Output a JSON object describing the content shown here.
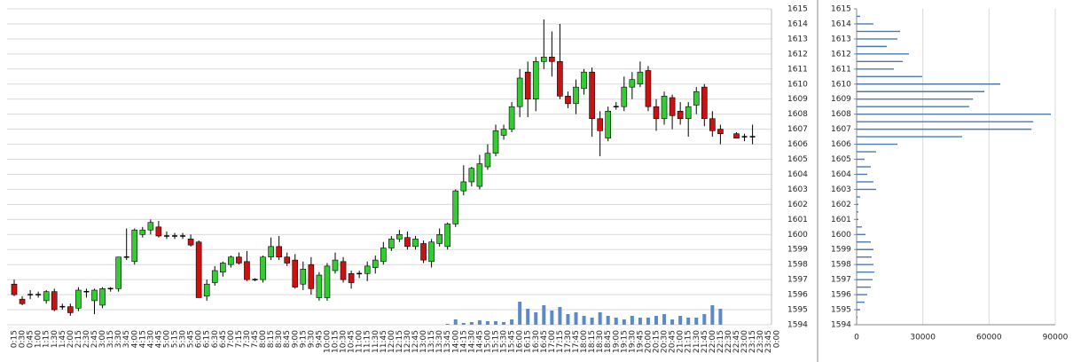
{
  "chart_data": [
    {
      "type": "candlestick",
      "categories": [
        "0:15",
        "0:30",
        "0:45",
        "1:00",
        "1:15",
        "1:30",
        "1:45",
        "2:00",
        "2:15",
        "2:30",
        "2:45",
        "3:00",
        "3:15",
        "3:30",
        "3:45",
        "4:00",
        "4:15",
        "4:30",
        "4:45",
        "5:00",
        "5:15",
        "5:30",
        "5:45",
        "6:00",
        "6:15",
        "6:30",
        "6:45",
        "7:00",
        "7:15",
        "7:30",
        "7:45",
        "8:00",
        "8:15",
        "8:30",
        "8:45",
        "9:00",
        "9:15",
        "9:30",
        "9:45",
        "10:00",
        "10:15",
        "10:30",
        "10:45",
        "11:00",
        "11:15",
        "11:30",
        "11:45",
        "12:00",
        "12:15",
        "12:30",
        "12:45",
        "13:00",
        "13:15",
        "13:30",
        "13:45",
        "14:00",
        "14:15",
        "14:30",
        "14:45",
        "15:00",
        "15:15",
        "15:30",
        "15:45",
        "16:00",
        "16:15",
        "16:30",
        "16:45",
        "17:00",
        "17:15",
        "17:30",
        "17:45",
        "18:00",
        "18:15",
        "18:30",
        "18:45",
        "19:00",
        "19:15",
        "19:30",
        "19:45",
        "20:00",
        "20:15",
        "20:30",
        "20:45",
        "21:00",
        "21:15",
        "21:30",
        "21:45",
        "22:00",
        "22:15",
        "22:30",
        "22:45",
        "23:00",
        "23:15",
        "23:30",
        "23:45",
        "0:00"
      ],
      "open": [
        1596.7,
        1595.7,
        1596.0,
        1596.0,
        1595.6,
        1596.2,
        1595.2,
        1595.2,
        1595.1,
        1596.2,
        1595.6,
        1595.3,
        1596.4,
        1596.4,
        1598.5,
        1598.2,
        1600.0,
        1600.3,
        1600.5,
        1599.9,
        1599.9,
        1599.9,
        1599.7,
        1599.5,
        1595.9,
        1596.8,
        1597.5,
        1598.0,
        1598.5,
        1598.2,
        1597.0,
        1597.0,
        1598.5,
        1599.2,
        1598.5,
        1598.3,
        1596.7,
        1598.0,
        1595.8,
        1595.8,
        1597.6,
        1598.2,
        1597.4,
        1597.4,
        1597.4,
        1597.8,
        1598.2,
        1599.1,
        1599.7,
        1599.8,
        1599.2,
        1599.4,
        1598.2,
        1599.4,
        1599.2,
        1600.7,
        1602.9,
        1603.5,
        1603.2,
        1604.5,
        1605.4,
        1606.6,
        1607.0,
        1608.5,
        1610.8,
        1609.0,
        1611.5,
        1611.8,
        1611.5,
        1609.2,
        1608.7,
        1609.7,
        1610.8,
        1607.7,
        1606.4,
        1608.5,
        1608.5,
        1609.8,
        1610.0,
        1610.9,
        1608.5,
        1607.7,
        1609.1,
        1608.2,
        1607.7,
        1608.6,
        1609.8,
        1607.7,
        1607.0,
        null,
        1606.7,
        1606.5,
        1606.5,
        null,
        null,
        null
      ],
      "high": [
        1597.0,
        1595.9,
        1596.3,
        1596.2,
        1596.3,
        1596.4,
        1595.4,
        1595.4,
        1596.5,
        1596.4,
        1596.4,
        1596.5,
        1596.5,
        1598.5,
        1600.4,
        1600.4,
        1600.5,
        1601.0,
        1600.9,
        1600.2,
        1600.1,
        1600.1,
        1600.0,
        1599.6,
        1597.0,
        1597.9,
        1598.2,
        1598.6,
        1598.8,
        1598.9,
        1597.1,
        1598.6,
        1599.8,
        1599.9,
        1598.8,
        1598.7,
        1598.2,
        1598.5,
        1597.5,
        1598.1,
        1598.8,
        1598.5,
        1597.6,
        1597.6,
        1598.2,
        1598.6,
        1599.5,
        1599.9,
        1600.3,
        1600.2,
        1599.9,
        1599.6,
        1599.7,
        1600.4,
        1600.8,
        1603.0,
        1604.6,
        1604.5,
        1605.3,
        1606.0,
        1607.3,
        1607.3,
        1608.8,
        1611.0,
        1611.5,
        1611.8,
        1614.3,
        1613.5,
        1614.0,
        1609.5,
        1610.3,
        1611.0,
        1611.1,
        1608.2,
        1608.5,
        1608.8,
        1610.5,
        1610.8,
        1611.5,
        1611.2,
        1609.0,
        1609.5,
        1609.3,
        1608.8,
        1608.8,
        1609.8,
        1610.0,
        1608.2,
        1607.3,
        null,
        1606.8,
        1606.7,
        1607.3,
        null,
        null,
        null
      ],
      "low": [
        1595.9,
        1595.3,
        1595.7,
        1595.8,
        1595.4,
        1594.9,
        1595.0,
        1594.6,
        1594.9,
        1595.8,
        1594.7,
        1595.1,
        1596.2,
        1596.2,
        1598.3,
        1598.0,
        1599.8,
        1600.0,
        1599.8,
        1599.7,
        1599.7,
        1599.7,
        1599.2,
        1595.8,
        1595.6,
        1596.6,
        1597.2,
        1597.8,
        1598.0,
        1596.9,
        1596.9,
        1596.8,
        1598.3,
        1598.3,
        1597.9,
        1596.4,
        1596.3,
        1596.0,
        1595.6,
        1595.6,
        1597.4,
        1596.8,
        1596.4,
        1597.1,
        1596.9,
        1597.4,
        1598.0,
        1598.9,
        1599.5,
        1599.0,
        1599.0,
        1598.1,
        1597.8,
        1599.2,
        1599.0,
        1600.5,
        1602.6,
        1603.2,
        1603.0,
        1604.3,
        1605.2,
        1606.3,
        1606.8,
        1607.8,
        1607.8,
        1608.2,
        1611.0,
        1610.5,
        1609.0,
        1608.4,
        1608.0,
        1609.3,
        1606.5,
        1605.2,
        1606.2,
        1608.3,
        1608.2,
        1609.0,
        1609.8,
        1608.2,
        1606.9,
        1607.3,
        1607.0,
        1607.3,
        1606.5,
        1608.0,
        1607.2,
        1606.5,
        1606.0,
        null,
        1606.4,
        1606.2,
        1606.0,
        null,
        null,
        null
      ],
      "close": [
        1596.0,
        1595.4,
        1596.0,
        1596.0,
        1596.2,
        1595.0,
        1595.2,
        1594.8,
        1596.3,
        1596.2,
        1596.3,
        1596.4,
        1596.4,
        1598.5,
        1598.5,
        1600.3,
        1600.3,
        1600.8,
        1599.9,
        1599.9,
        1599.9,
        1599.9,
        1599.3,
        1595.8,
        1596.7,
        1597.6,
        1598.1,
        1598.5,
        1598.1,
        1597.0,
        1597.0,
        1598.5,
        1599.2,
        1598.5,
        1598.1,
        1596.5,
        1597.7,
        1596.4,
        1597.3,
        1597.9,
        1598.3,
        1597.0,
        1596.8,
        1597.4,
        1597.9,
        1598.3,
        1599.1,
        1599.7,
        1600.0,
        1599.2,
        1599.7,
        1598.3,
        1599.5,
        1600.0,
        1600.7,
        1602.9,
        1603.5,
        1604.4,
        1604.7,
        1605.4,
        1606.9,
        1607.0,
        1608.5,
        1610.4,
        1609.0,
        1611.5,
        1611.8,
        1611.5,
        1609.2,
        1608.7,
        1609.8,
        1610.8,
        1607.7,
        1606.9,
        1608.2,
        1608.5,
        1609.8,
        1610.3,
        1610.8,
        1608.5,
        1607.7,
        1609.2,
        1607.9,
        1607.7,
        1608.5,
        1609.5,
        1607.7,
        1606.9,
        1606.7,
        null,
        1606.4,
        1606.5,
        1606.5,
        null,
        null,
        null
      ],
      "volume": [
        null,
        null,
        null,
        null,
        null,
        null,
        null,
        null,
        null,
        null,
        null,
        null,
        null,
        null,
        null,
        null,
        null,
        null,
        null,
        null,
        null,
        null,
        null,
        null,
        null,
        null,
        null,
        null,
        null,
        null,
        null,
        null,
        null,
        null,
        null,
        null,
        null,
        null,
        null,
        null,
        null,
        null,
        null,
        null,
        null,
        null,
        null,
        null,
        null,
        null,
        null,
        null,
        null,
        null,
        1,
        6,
        2,
        3,
        5,
        4,
        4,
        3,
        6,
        26,
        18,
        14,
        22,
        16,
        20,
        12,
        14,
        10,
        8,
        14,
        10,
        8,
        6,
        10,
        8,
        8,
        10,
        12,
        6,
        10,
        8,
        8,
        12,
        22,
        18,
        null,
        null,
        null,
        null,
        null,
        null,
        null
      ],
      "up_color": "#33cc33",
      "down_color": "#cc1111",
      "volume_color": "#5b8ac6",
      "ylim": [
        1594,
        1615
      ],
      "yticks": [
        1594,
        1595,
        1596,
        1597,
        1598,
        1599,
        1600,
        1601,
        1602,
        1603,
        1604,
        1605,
        1606,
        1607,
        1608,
        1609,
        1610,
        1611,
        1612,
        1613,
        1614,
        1615
      ],
      "grid": true
    },
    {
      "type": "barh",
      "y": [
        1614.5,
        1614,
        1613.5,
        1613,
        1612.5,
        1612,
        1611.5,
        1611,
        1610.5,
        1610,
        1609.5,
        1609,
        1608.5,
        1608,
        1607.5,
        1607,
        1606.5,
        1606,
        1605.5,
        1605,
        1604.5,
        1604,
        1603.5,
        1603,
        1602.5,
        1602,
        1601.5,
        1601,
        1600.5,
        1600,
        1599.5,
        1599,
        1598.5,
        1598,
        1597.5,
        1597,
        1596.5,
        1596,
        1595.5,
        1595,
        1594.5
      ],
      "values": [
        1600,
        7600,
        19700,
        18500,
        13700,
        23700,
        20900,
        16900,
        29700,
        65100,
        57900,
        52700,
        51000,
        88000,
        80000,
        79200,
        47800,
        18500,
        8800,
        3600,
        6400,
        4800,
        7600,
        8800,
        1600,
        800,
        800,
        800,
        2400,
        4000,
        6400,
        7600,
        6800,
        7600,
        8000,
        7200,
        6400,
        4800,
        3600,
        1600,
        400
      ],
      "color": "#4a7ab0",
      "xlim": [
        0,
        90000
      ],
      "xticks": [
        0,
        30000,
        60000,
        90000
      ],
      "ylim": [
        1594,
        1615
      ],
      "yticks": [
        1594,
        1595,
        1596,
        1597,
        1598,
        1599,
        1600,
        1601,
        1602,
        1603,
        1604,
        1605,
        1606,
        1607,
        1608,
        1609,
        1610,
        1611,
        1612,
        1613,
        1614,
        1615
      ],
      "grid": true
    }
  ]
}
